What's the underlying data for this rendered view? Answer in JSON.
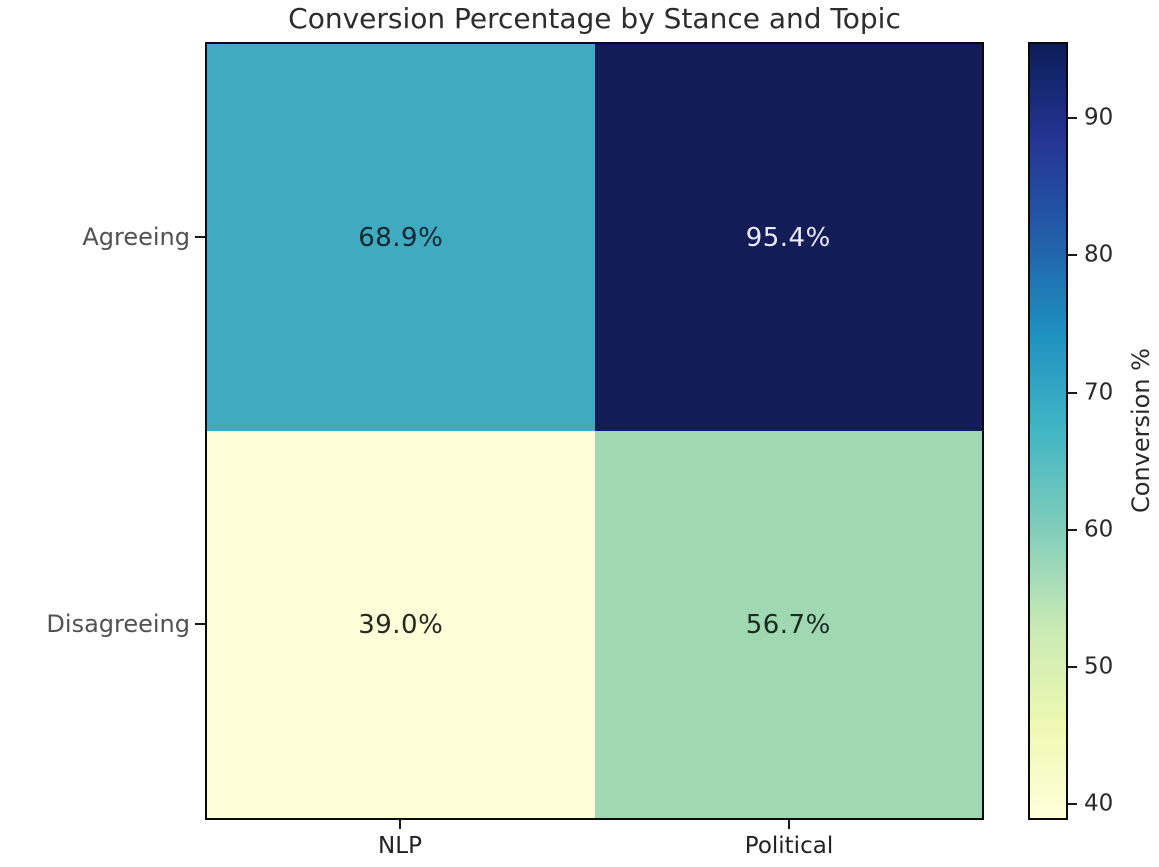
{
  "title": "Conversion Percentage by Stance and Topic",
  "chart_data": {
    "type": "heatmap",
    "title": "Conversion Percentage by Stance and Topic",
    "rows": [
      "Agreeing",
      "Disagreeing"
    ],
    "columns": [
      "NLP",
      "Political"
    ],
    "values": [
      [
        68.9,
        95.4
      ],
      [
        39.0,
        56.7
      ]
    ],
    "labels": [
      [
        "68.9%",
        "95.4%"
      ],
      [
        "39.0%",
        "56.7%"
      ]
    ],
    "cell_colors": [
      [
        "#40abc0",
        "#141c58"
      ],
      [
        "#fdfdd8",
        "#a0d8b3"
      ]
    ],
    "cell_text_colors": [
      [
        "#102830",
        "#e9ebf5"
      ],
      [
        "#262620",
        "#1c2b20"
      ]
    ],
    "colormap": "YlGnBu",
    "colorbar": {
      "label": "Conversion %",
      "ticks": [
        40,
        50,
        60,
        70,
        80,
        90
      ],
      "vmin": 39.0,
      "vmax": 95.4,
      "gradient_bottom_to_top": [
        "#ffffd9",
        "#edf8b1",
        "#c7e9b4",
        "#7fcdbb",
        "#41b6c4",
        "#1d91c0",
        "#225ea8",
        "#253494",
        "#0c1d58"
      ]
    },
    "grid": false,
    "legend": "colorbar-right"
  },
  "colors": {
    "background": "#ffffff",
    "frame": "#0a0a0a",
    "title_text": "#2d2d2d",
    "ytick_text": "#525252",
    "xtick_text": "#222222",
    "colorbar_text": "#2a2a2a"
  }
}
